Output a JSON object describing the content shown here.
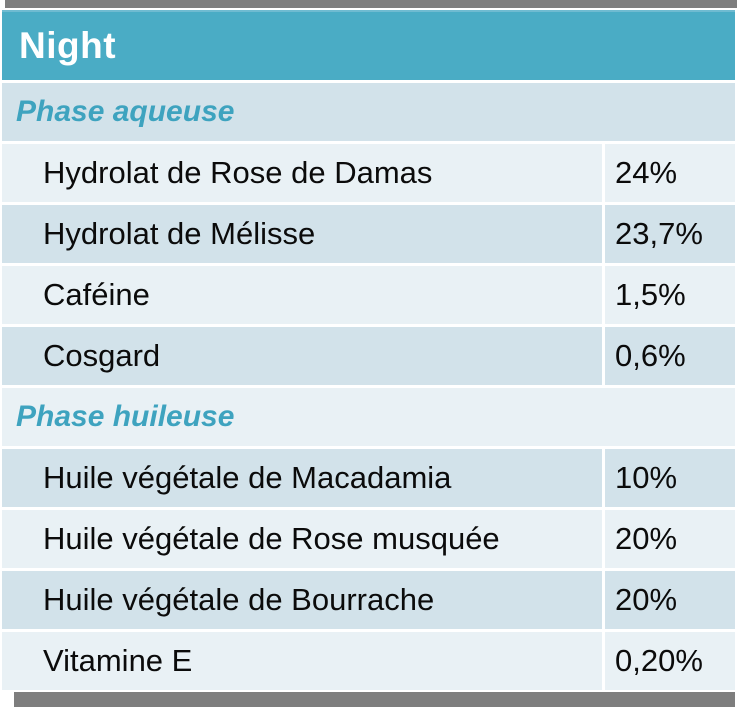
{
  "table": {
    "title": "Night",
    "sections": [
      {
        "label": "Phase aqueuse",
        "rows": [
          {
            "name": "Hydrolat de Rose de Damas",
            "value": "24%"
          },
          {
            "name": "Hydrolat de Mélisse",
            "value": "23,7%"
          },
          {
            "name": "Caféine",
            "value": "1,5%"
          },
          {
            "name": "Cosgard",
            "value": "0,6%"
          }
        ]
      },
      {
        "label": "Phase huileuse",
        "rows": [
          {
            "name": "Huile végétale de Macadamia",
            "value": "10%"
          },
          {
            "name": "Huile végétale de Rose musquée",
            "value": "20%"
          },
          {
            "name": "Huile végétale de Bourrache",
            "value": "20%"
          },
          {
            "name": "Vitamine E",
            "value": "0,20%"
          }
        ]
      }
    ]
  },
  "colors": {
    "header_bg": "#4AACC5",
    "header_edge": "#6FBBD1",
    "header_text": "#FFFFFF",
    "band_dark": "#D2E2EA",
    "band_light": "#E9F1F5",
    "section_text": "#3EA3BF",
    "body_text": "#0B0B0B",
    "shadow": "#7E7E7E",
    "page_bg": "#FFFFFF"
  }
}
